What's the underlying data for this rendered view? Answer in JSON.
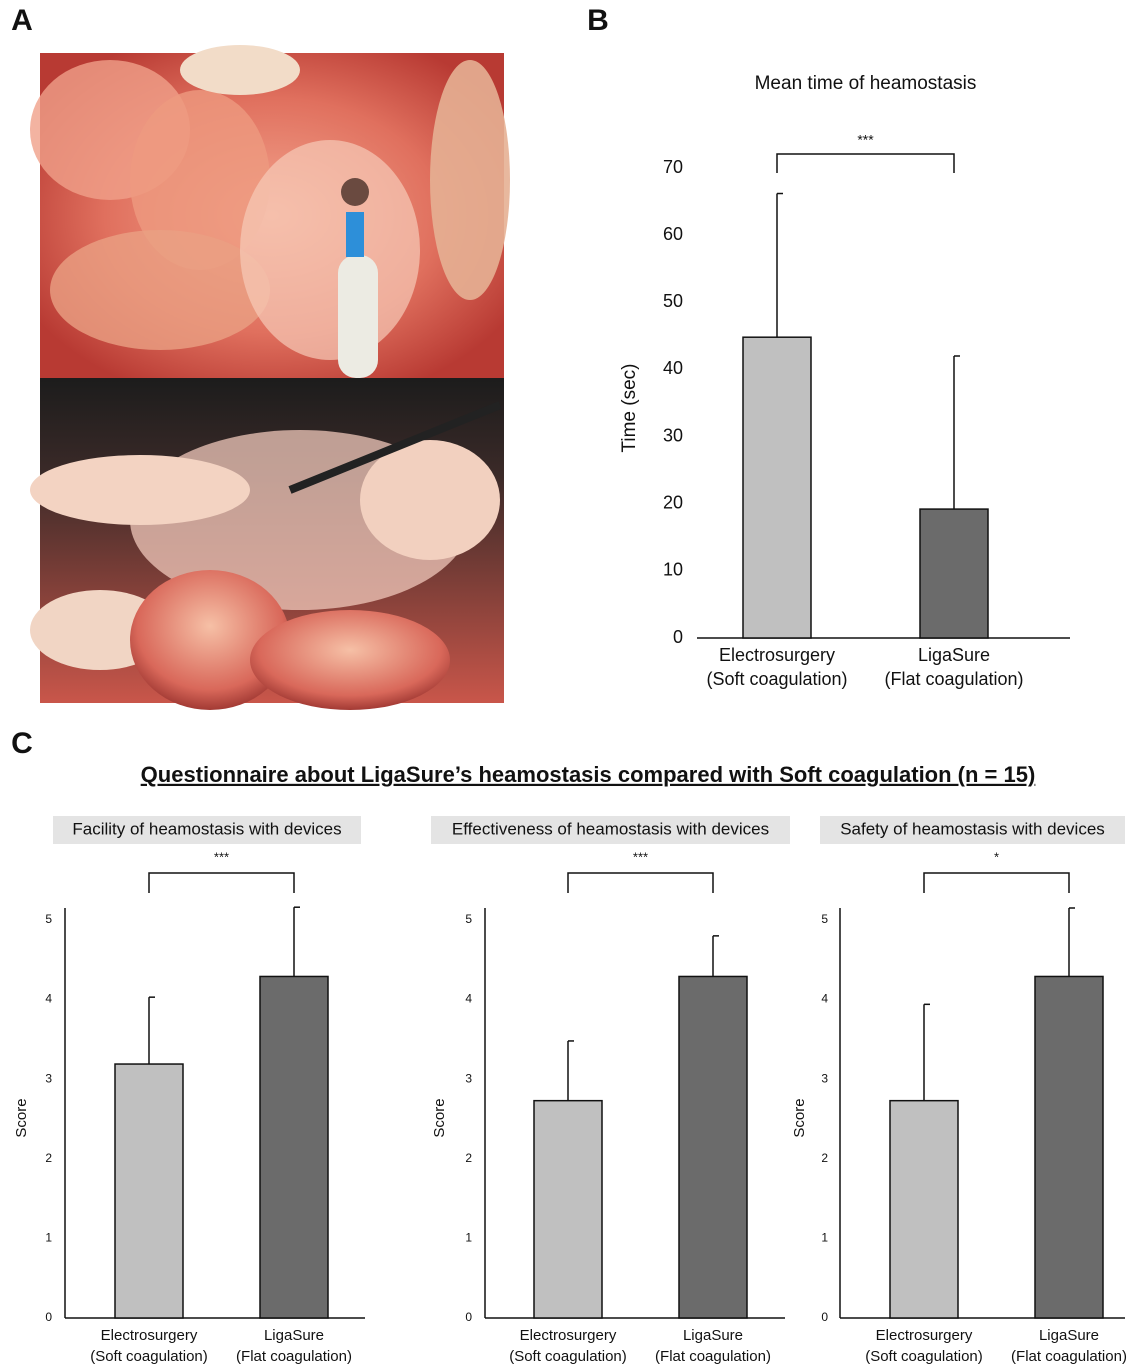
{
  "panel_labels": [
    "A",
    "B",
    "C"
  ],
  "section_title": "Questionnaire about LigaSure’s heamostasis compared with Soft coagulation (n = 15)",
  "chart_data": [
    {
      "type": "bar",
      "title": "Mean time of heamostasis",
      "ylabel": "Time (sec)",
      "categories": [
        [
          "Electrosurgery",
          "(Soft coagulation)"
        ],
        [
          "LigaSure",
          "(Flat coagulation)"
        ]
      ],
      "values": [
        44.8,
        19.2
      ],
      "errors": [
        21.4,
        22.8
      ],
      "colors": [
        "#c0c0c0",
        "#6b6b6b"
      ],
      "significance": "***",
      "ylim": [
        0,
        70
      ],
      "yticks": [
        0,
        10,
        20,
        30,
        40,
        50,
        60,
        70
      ],
      "y_axis_line": false
    },
    {
      "type": "bar",
      "title": "Facility of heamostasis with devices",
      "ylabel": "Score",
      "categories": [
        [
          "Electrosurgery",
          "(Soft coagulation)"
        ],
        [
          "LigaSure",
          "(Flat coagulation)"
        ]
      ],
      "values": [
        3.19,
        4.29
      ],
      "errors": [
        0.84,
        0.87
      ],
      "colors": [
        "#c0c0c0",
        "#6b6b6b"
      ],
      "significance": "***",
      "ylim": [
        0,
        5.15
      ],
      "yticks": [
        0,
        1,
        2,
        3,
        4,
        5
      ],
      "y_axis_line": true
    },
    {
      "type": "bar",
      "title": "Effectiveness of heamostasis with devices",
      "ylabel": "Score",
      "categories": [
        [
          "Electrosurgery",
          "(Soft coagulation)"
        ],
        [
          "LigaSure",
          "(Flat coagulation)"
        ]
      ],
      "values": [
        2.73,
        4.29
      ],
      "errors": [
        0.75,
        0.51
      ],
      "colors": [
        "#c0c0c0",
        "#6b6b6b"
      ],
      "significance": "***",
      "ylim": [
        0,
        5.15
      ],
      "yticks": [
        0,
        1,
        2,
        3,
        4,
        5
      ],
      "y_axis_line": true
    },
    {
      "type": "bar",
      "title": "Safety of heamostasis with devices",
      "ylabel": "Score",
      "categories": [
        [
          "Electrosurgery",
          "(Soft coagulation)"
        ],
        [
          "LigaSure",
          "(Flat coagulation)"
        ]
      ],
      "values": [
        2.73,
        4.29
      ],
      "errors": [
        1.21,
        0.86
      ],
      "colors": [
        "#c0c0c0",
        "#6b6b6b"
      ],
      "significance": "*",
      "ylim": [
        0,
        5.15
      ],
      "yticks": [
        0,
        1,
        2,
        3,
        4,
        5
      ],
      "y_axis_line": true
    }
  ]
}
